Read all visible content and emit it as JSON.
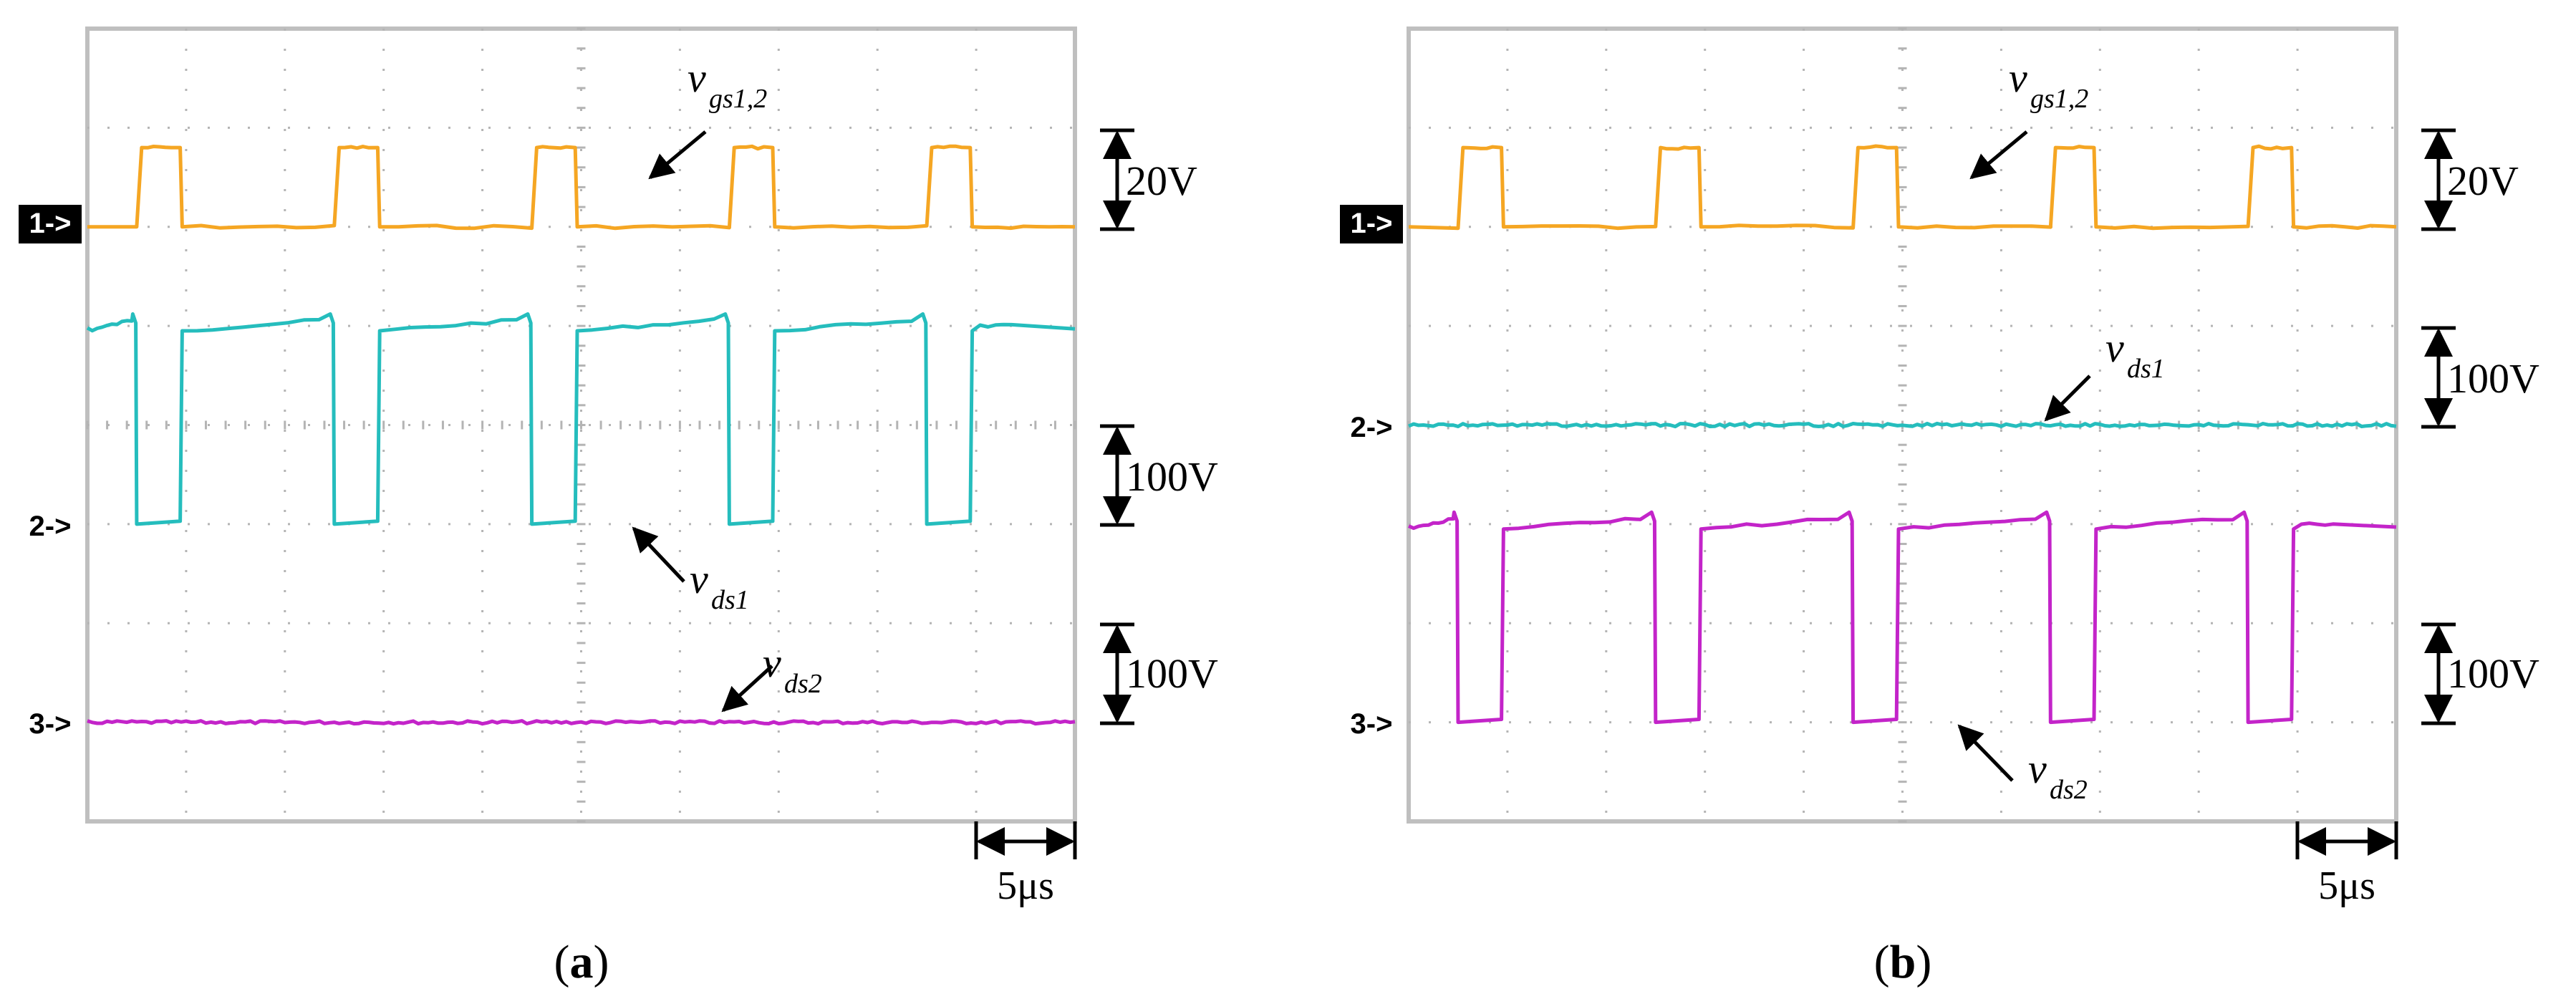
{
  "colors": {
    "vgs": "#f5a623",
    "vds1": "#25bdbd",
    "vds2": "#c324c9",
    "grid": "#b4b4b4",
    "frame": "#bfbfbf",
    "ink": "#000000"
  },
  "chart_data": [
    {
      "type": "line",
      "id": "a",
      "caption": "(a)",
      "caption_letter": "a",
      "x_range_us": [
        0,
        50
      ],
      "x_divisions": 10,
      "y_divisions": 8,
      "time_scale_label": "5μs",
      "period_us": 10,
      "pulse_width_us": 2.3,
      "pulse_start_offset_us": 5,
      "channel_markers": [
        {
          "label": "1->",
          "style": "filled",
          "level_div": 6
        },
        {
          "label": "2->",
          "style": "outline",
          "level_div": 3
        },
        {
          "label": "3->",
          "style": "outline",
          "level_div": 1
        }
      ],
      "series": [
        {
          "name": "vgs1,2",
          "label_main": "v",
          "label_sub": "gs1,2",
          "channel": 1,
          "color_key": "vgs",
          "low_div": 6,
          "high_div": 6.8,
          "scale_label": "20V"
        },
        {
          "name": "vds1",
          "label_main": "v",
          "label_sub": "ds1",
          "channel": 2,
          "color_key": "vds1",
          "low_div": 3,
          "high_div": 5,
          "scale_label": "100V",
          "switching": true
        },
        {
          "name": "vds2",
          "label_main": "v",
          "label_sub": "ds2",
          "channel": 3,
          "color_key": "vds2",
          "low_div": 1,
          "high_div": 1,
          "scale_label": "100V",
          "switching": false
        }
      ]
    },
    {
      "type": "line",
      "id": "b",
      "caption": "(b)",
      "caption_letter": "b",
      "x_range_us": [
        0,
        50
      ],
      "x_divisions": 10,
      "y_divisions": 8,
      "time_scale_label": "5μs",
      "period_us": 10,
      "pulse_width_us": 2.3,
      "pulse_start_offset_us": 5,
      "channel_markers": [
        {
          "label": "1->",
          "style": "filled",
          "level_div": 6
        },
        {
          "label": "2->",
          "style": "outline",
          "level_div": 4
        },
        {
          "label": "3->",
          "style": "outline",
          "level_div": 1
        }
      ],
      "series": [
        {
          "name": "vgs1,2",
          "label_main": "v",
          "label_sub": "gs1,2",
          "channel": 1,
          "color_key": "vgs",
          "low_div": 6,
          "high_div": 6.8,
          "scale_label": "20V"
        },
        {
          "name": "vds1",
          "label_main": "v",
          "label_sub": "ds1",
          "channel": 2,
          "color_key": "vds1",
          "low_div": 4,
          "high_div": 4,
          "scale_label": "100V",
          "switching": false
        },
        {
          "name": "vds2",
          "label_main": "v",
          "label_sub": "ds2",
          "channel": 3,
          "color_key": "vds2",
          "low_div": 1,
          "high_div": 3,
          "scale_label": "100V",
          "switching": true
        }
      ]
    }
  ]
}
